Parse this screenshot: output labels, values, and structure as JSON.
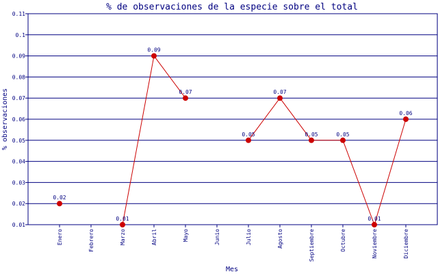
{
  "chart_data": {
    "type": "line",
    "title": "% de observaciones de la especie sobre el total",
    "xlabel": "Mes",
    "ylabel": "% observaciones",
    "categories": [
      "Enero",
      "Febrero",
      "Marzo",
      "Abril",
      "Mayo",
      "Junio",
      "Julio",
      "Agosto",
      "Septiembre",
      "Octubre",
      "Noviembre",
      "Diciembre"
    ],
    "ylim": [
      0.01,
      0.11
    ],
    "yticks": [
      "0.01",
      "0.02",
      "0.03",
      "0.04",
      "0.05",
      "0.06",
      "0.07",
      "0.08",
      "0.09",
      "0.1",
      "0.11"
    ],
    "grid": true,
    "series": [
      {
        "values": [
          0.02,
          null,
          0.01,
          0.09,
          0.07,
          null,
          0.05,
          0.07,
          0.05,
          0.05,
          0.01,
          0.06
        ],
        "labels": [
          "0.02",
          null,
          "0.01",
          "0.09",
          "0.07",
          null,
          "0.05",
          "0.07",
          "0.05",
          "0.05",
          "0.01",
          "0.06"
        ],
        "color": "#cc0000"
      }
    ],
    "colors": {
      "frame": "#000080",
      "grid": "#000080",
      "line": "#cc0000",
      "marker": "#cc0000",
      "text": "#000080"
    }
  }
}
